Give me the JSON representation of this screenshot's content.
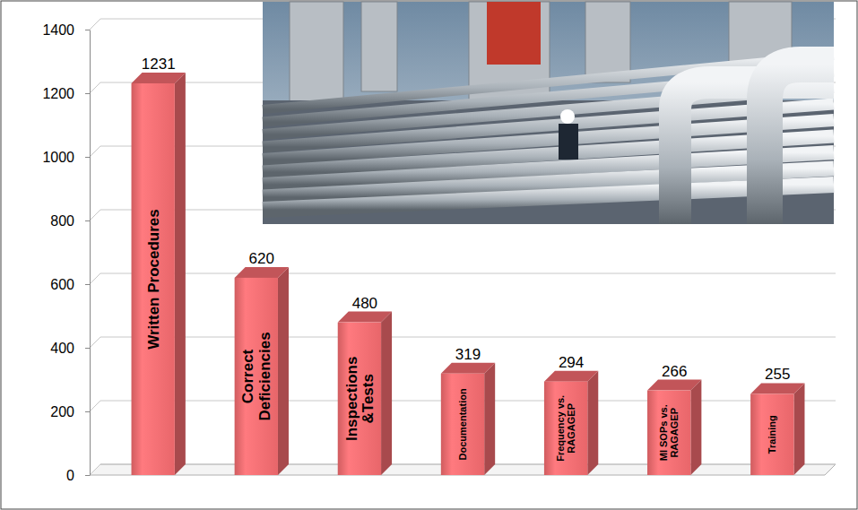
{
  "chart_data": {
    "type": "bar",
    "categories": [
      "Written Procedures",
      "Correct\nDeficiencies",
      "Inspections\n&Tests",
      "Documentation",
      "Frequency vs.\nRAGAGEP",
      "MI SOPs vs.\nRAGAGEP",
      "Training"
    ],
    "values": [
      1231,
      620,
      480,
      319,
      294,
      266,
      255
    ],
    "color": "#e8666a",
    "ylim": [
      0,
      1400
    ],
    "yticks": [
      0,
      200,
      400,
      600,
      800,
      1000,
      1200,
      1400
    ],
    "grid": true,
    "data_labels": true
  }
}
